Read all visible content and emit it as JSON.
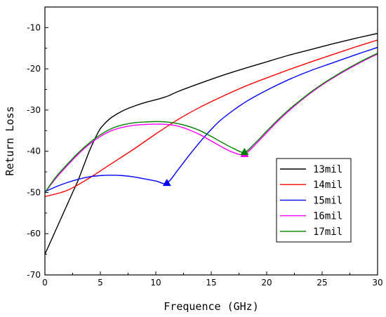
{
  "chart_data": {
    "type": "line",
    "title": "",
    "xlabel": "Frequence (GHz)",
    "ylabel": "Return Loss",
    "xlim": [
      0,
      30
    ],
    "ylim": [
      -70,
      -5
    ],
    "xticks": [
      0,
      5,
      10,
      15,
      20,
      25,
      30
    ],
    "yticks": [
      -70,
      -60,
      -50,
      -40,
      -30,
      -20,
      -10
    ],
    "grid": false,
    "legend_position": "lower-right",
    "series": [
      {
        "name": "13mil",
        "color": "#000000",
        "points": [
          [
            0,
            -65
          ],
          [
            0.5,
            -62
          ],
          [
            1,
            -59
          ],
          [
            1.5,
            -56
          ],
          [
            2,
            -53
          ],
          [
            2.5,
            -50
          ],
          [
            3,
            -47
          ],
          [
            3.5,
            -43.5
          ],
          [
            4,
            -40
          ],
          [
            4.5,
            -37
          ],
          [
            5,
            -34.5
          ],
          [
            5.5,
            -33
          ],
          [
            6,
            -31.8
          ],
          [
            7,
            -30.2
          ],
          [
            8,
            -29.1
          ],
          [
            9,
            -28.2
          ],
          [
            10,
            -27.5
          ],
          [
            11,
            -26.7
          ],
          [
            12,
            -25.5
          ],
          [
            14,
            -23.5
          ],
          [
            16,
            -21.6
          ],
          [
            18,
            -19.9
          ],
          [
            20,
            -18.3
          ],
          [
            22,
            -16.7
          ],
          [
            24,
            -15.3
          ],
          [
            26,
            -13.9
          ],
          [
            28,
            -12.6
          ],
          [
            30,
            -11.4
          ]
        ]
      },
      {
        "name": "14mil",
        "color": "#ff0000",
        "points": [
          [
            0,
            -51
          ],
          [
            2,
            -49.5
          ],
          [
            4,
            -46.5
          ],
          [
            6,
            -43
          ],
          [
            8,
            -39.5
          ],
          [
            10,
            -35.8
          ],
          [
            12,
            -32.3
          ],
          [
            14,
            -29.3
          ],
          [
            16,
            -26.7
          ],
          [
            18,
            -24.3
          ],
          [
            20,
            -22.2
          ],
          [
            22,
            -20.2
          ],
          [
            24,
            -18.3
          ],
          [
            26,
            -16.5
          ],
          [
            28,
            -14.7
          ],
          [
            30,
            -13
          ]
        ]
      },
      {
        "name": "15mil",
        "color": "#0000ff",
        "points": [
          [
            0,
            -49.8
          ],
          [
            1,
            -48.6
          ],
          [
            2,
            -47.6
          ],
          [
            3,
            -46.8
          ],
          [
            4,
            -46.2
          ],
          [
            5,
            -45.9
          ],
          [
            6,
            -45.8
          ],
          [
            7,
            -45.9
          ],
          [
            8,
            -46.2
          ],
          [
            9,
            -46.7
          ],
          [
            10,
            -47.2
          ],
          [
            11,
            -47.7
          ],
          [
            12,
            -44.5
          ],
          [
            13,
            -41
          ],
          [
            14,
            -37.7
          ],
          [
            15,
            -34.7
          ],
          [
            16,
            -32.1
          ],
          [
            18,
            -28.2
          ],
          [
            20,
            -25.2
          ],
          [
            22,
            -22.6
          ],
          [
            24,
            -20.4
          ],
          [
            26,
            -18.5
          ],
          [
            28,
            -16.6
          ],
          [
            30,
            -14.8
          ]
        ]
      },
      {
        "name": "16mil",
        "color": "#ff00ff",
        "points": [
          [
            0,
            -50
          ],
          [
            1,
            -46.5
          ],
          [
            2,
            -43.5
          ],
          [
            3,
            -40.7
          ],
          [
            4,
            -38.3
          ],
          [
            5,
            -36.4
          ],
          [
            6,
            -35
          ],
          [
            7,
            -34.2
          ],
          [
            8,
            -33.7
          ],
          [
            9,
            -33.5
          ],
          [
            10,
            -33.4
          ],
          [
            11,
            -33.5
          ],
          [
            12,
            -33.9
          ],
          [
            13,
            -34.8
          ],
          [
            14,
            -36
          ],
          [
            15,
            -37.5
          ],
          [
            16,
            -39
          ],
          [
            17,
            -40.3
          ],
          [
            18,
            -40.7
          ],
          [
            19,
            -38.3
          ],
          [
            20,
            -35.5
          ],
          [
            21,
            -32.7
          ],
          [
            22,
            -30.2
          ],
          [
            23,
            -27.9
          ],
          [
            24,
            -25.8
          ],
          [
            25,
            -23.9
          ],
          [
            26,
            -22.2
          ],
          [
            27,
            -20.6
          ],
          [
            28,
            -19.1
          ],
          [
            29,
            -17.7
          ],
          [
            30,
            -16.4
          ]
        ]
      },
      {
        "name": "17mil",
        "color": "#008000",
        "points": [
          [
            0,
            -50
          ],
          [
            1,
            -46.2
          ],
          [
            2,
            -43.2
          ],
          [
            3,
            -40.4
          ],
          [
            4,
            -38
          ],
          [
            5,
            -36
          ],
          [
            6,
            -34.5
          ],
          [
            7,
            -33.6
          ],
          [
            8,
            -33.1
          ],
          [
            9,
            -32.9
          ],
          [
            10,
            -32.8
          ],
          [
            11,
            -32.9
          ],
          [
            12,
            -33.3
          ],
          [
            13,
            -34
          ],
          [
            14,
            -35
          ],
          [
            15,
            -36.4
          ],
          [
            16,
            -37.9
          ],
          [
            17,
            -39.3
          ],
          [
            18,
            -40.2
          ],
          [
            19,
            -37.9
          ],
          [
            20,
            -35.1
          ],
          [
            21,
            -32.4
          ],
          [
            22,
            -29.9
          ],
          [
            23,
            -27.7
          ],
          [
            24,
            -25.6
          ],
          [
            25,
            -23.7
          ],
          [
            26,
            -22
          ],
          [
            27,
            -20.4
          ],
          [
            28,
            -18.9
          ],
          [
            29,
            -17.5
          ],
          [
            30,
            -16.2
          ]
        ]
      }
    ],
    "markers": [
      {
        "series": "15mil",
        "x": 11,
        "y": -47.7,
        "color": "#0000ff"
      },
      {
        "series": "16mil",
        "x": 18,
        "y": -40.7,
        "color": "#ff00ff"
      },
      {
        "series": "17mil",
        "x": 18,
        "y": -40.2,
        "color": "#008000"
      }
    ]
  }
}
